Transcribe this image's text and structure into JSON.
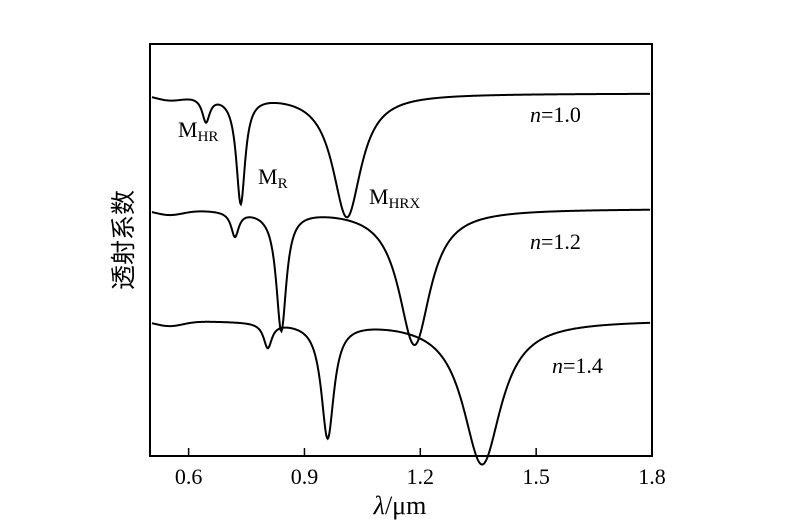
{
  "chart_data": {
    "type": "line",
    "xlabel_symbol": "λ",
    "xlabel_unit": "/μm",
    "ylabel": "透射系数",
    "xlim": [
      0.5,
      1.8
    ],
    "xticks": [
      "0.6",
      "0.9",
      "1.2",
      "1.5",
      "1.8"
    ],
    "xtick_values": [
      0.6,
      0.9,
      1.2,
      1.5,
      1.8
    ],
    "series": [
      {
        "name_var": "n",
        "name_value": "=1.0",
        "baseline": 0.88,
        "dips": [
          {
            "x": 0.645,
            "depth": 0.06,
            "width": 0.012
          },
          {
            "x": 0.735,
            "depth": 0.26,
            "width": 0.014
          },
          {
            "x": 1.01,
            "depth": 0.3,
            "width": 0.045
          }
        ]
      },
      {
        "name_var": "n",
        "name_value": "=1.2",
        "baseline": 0.6,
        "dips": [
          {
            "x": 0.72,
            "depth": 0.06,
            "width": 0.012
          },
          {
            "x": 0.84,
            "depth": 0.29,
            "width": 0.016
          },
          {
            "x": 1.185,
            "depth": 0.33,
            "width": 0.05
          }
        ]
      },
      {
        "name_var": "n",
        "name_value": "=1.4",
        "baseline": 0.33,
        "dips": [
          {
            "x": 0.805,
            "depth": 0.06,
            "width": 0.013
          },
          {
            "x": 0.96,
            "depth": 0.28,
            "width": 0.02
          },
          {
            "x": 1.36,
            "depth": 0.35,
            "width": 0.06
          }
        ]
      }
    ],
    "annotations": [
      {
        "main": "M",
        "sub": "HR"
      },
      {
        "main": "M",
        "sub": "R"
      },
      {
        "main": "M",
        "sub": "HRX"
      }
    ]
  }
}
